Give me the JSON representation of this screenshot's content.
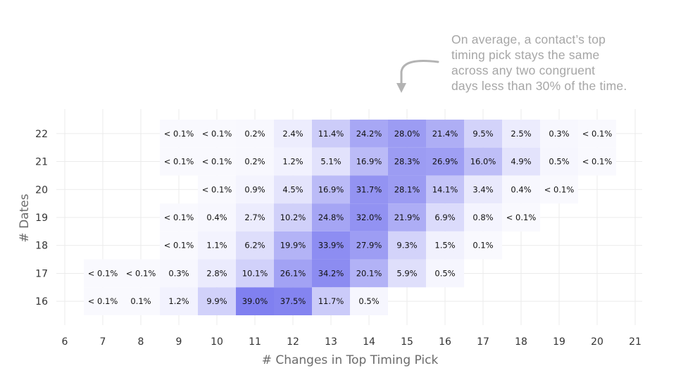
{
  "annotation": {
    "lines": [
      "On average, a contact’s top",
      "timing pick stays the same",
      "across any two congruent",
      "days less than 30% of the time."
    ]
  },
  "chart_data": {
    "type": "heatmap",
    "xlabel": "# Changes in Top Timing Pick",
    "ylabel": "# Dates",
    "x_ticks": [
      6,
      7,
      8,
      9,
      10,
      11,
      12,
      13,
      14,
      15,
      16,
      17,
      18,
      19,
      20,
      21
    ],
    "y_ticks": [
      16,
      17,
      18,
      19,
      20,
      21,
      22
    ],
    "xlim": [
      6,
      21
    ],
    "ylim": [
      15.4,
      22.6
    ],
    "grid": true,
    "color_low": "#ffffff",
    "color_high": "#8080f0",
    "rows": [
      {
        "y": 22,
        "cells": [
          {
            "x": 9,
            "v": 0.05,
            "label": "< 0.1%"
          },
          {
            "x": 10,
            "v": 0.05,
            "label": "< 0.1%"
          },
          {
            "x": 11,
            "v": 0.2,
            "label": "0.2%"
          },
          {
            "x": 12,
            "v": 2.4,
            "label": "2.4%"
          },
          {
            "x": 13,
            "v": 11.4,
            "label": "11.4%"
          },
          {
            "x": 14,
            "v": 24.2,
            "label": "24.2%"
          },
          {
            "x": 15,
            "v": 28.0,
            "label": "28.0%"
          },
          {
            "x": 16,
            "v": 21.4,
            "label": "21.4%"
          },
          {
            "x": 17,
            "v": 9.5,
            "label": "9.5%"
          },
          {
            "x": 18,
            "v": 2.5,
            "label": "2.5%"
          },
          {
            "x": 19,
            "v": 0.3,
            "label": "0.3%"
          },
          {
            "x": 20,
            "v": 0.05,
            "label": "< 0.1%"
          }
        ]
      },
      {
        "y": 21,
        "cells": [
          {
            "x": 9,
            "v": 0.05,
            "label": "< 0.1%"
          },
          {
            "x": 10,
            "v": 0.05,
            "label": "< 0.1%"
          },
          {
            "x": 11,
            "v": 0.2,
            "label": "0.2%"
          },
          {
            "x": 12,
            "v": 1.2,
            "label": "1.2%"
          },
          {
            "x": 13,
            "v": 5.1,
            "label": "5.1%"
          },
          {
            "x": 14,
            "v": 16.9,
            "label": "16.9%"
          },
          {
            "x": 15,
            "v": 28.3,
            "label": "28.3%"
          },
          {
            "x": 16,
            "v": 26.9,
            "label": "26.9%"
          },
          {
            "x": 17,
            "v": 16.0,
            "label": "16.0%"
          },
          {
            "x": 18,
            "v": 4.9,
            "label": "4.9%"
          },
          {
            "x": 19,
            "v": 0.5,
            "label": "0.5%"
          },
          {
            "x": 20,
            "v": 0.05,
            "label": "< 0.1%"
          }
        ]
      },
      {
        "y": 20,
        "cells": [
          {
            "x": 10,
            "v": 0.05,
            "label": "< 0.1%"
          },
          {
            "x": 11,
            "v": 0.9,
            "label": "0.9%"
          },
          {
            "x": 12,
            "v": 4.5,
            "label": "4.5%"
          },
          {
            "x": 13,
            "v": 16.9,
            "label": "16.9%"
          },
          {
            "x": 14,
            "v": 31.7,
            "label": "31.7%"
          },
          {
            "x": 15,
            "v": 28.1,
            "label": "28.1%"
          },
          {
            "x": 16,
            "v": 14.1,
            "label": "14.1%"
          },
          {
            "x": 17,
            "v": 3.4,
            "label": "3.4%"
          },
          {
            "x": 18,
            "v": 0.4,
            "label": "0.4%"
          },
          {
            "x": 19,
            "v": 0.05,
            "label": "< 0.1%"
          }
        ]
      },
      {
        "y": 19,
        "cells": [
          {
            "x": 9,
            "v": 0.05,
            "label": "< 0.1%"
          },
          {
            "x": 10,
            "v": 0.4,
            "label": "0.4%"
          },
          {
            "x": 11,
            "v": 2.7,
            "label": "2.7%"
          },
          {
            "x": 12,
            "v": 10.2,
            "label": "10.2%"
          },
          {
            "x": 13,
            "v": 24.8,
            "label": "24.8%"
          },
          {
            "x": 14,
            "v": 32.0,
            "label": "32.0%"
          },
          {
            "x": 15,
            "v": 21.9,
            "label": "21.9%"
          },
          {
            "x": 16,
            "v": 6.9,
            "label": "6.9%"
          },
          {
            "x": 17,
            "v": 0.8,
            "label": "0.8%"
          },
          {
            "x": 18,
            "v": 0.05,
            "label": "< 0.1%"
          }
        ]
      },
      {
        "y": 18,
        "cells": [
          {
            "x": 9,
            "v": 0.05,
            "label": "< 0.1%"
          },
          {
            "x": 10,
            "v": 1.1,
            "label": "1.1%"
          },
          {
            "x": 11,
            "v": 6.2,
            "label": "6.2%"
          },
          {
            "x": 12,
            "v": 19.9,
            "label": "19.9%"
          },
          {
            "x": 13,
            "v": 33.9,
            "label": "33.9%"
          },
          {
            "x": 14,
            "v": 27.9,
            "label": "27.9%"
          },
          {
            "x": 15,
            "v": 9.3,
            "label": "9.3%"
          },
          {
            "x": 16,
            "v": 1.5,
            "label": "1.5%"
          },
          {
            "x": 17,
            "v": 0.1,
            "label": "0.1%"
          }
        ]
      },
      {
        "y": 17,
        "cells": [
          {
            "x": 7,
            "v": 0.05,
            "label": "< 0.1%"
          },
          {
            "x": 8,
            "v": 0.05,
            "label": "< 0.1%"
          },
          {
            "x": 9,
            "v": 0.3,
            "label": "0.3%"
          },
          {
            "x": 10,
            "v": 2.8,
            "label": "2.8%"
          },
          {
            "x": 11,
            "v": 10.1,
            "label": "10.1%"
          },
          {
            "x": 12,
            "v": 26.1,
            "label": "26.1%"
          },
          {
            "x": 13,
            "v": 34.2,
            "label": "34.2%"
          },
          {
            "x": 14,
            "v": 20.1,
            "label": "20.1%"
          },
          {
            "x": 15,
            "v": 5.9,
            "label": "5.9%"
          },
          {
            "x": 16,
            "v": 0.5,
            "label": "0.5%"
          }
        ]
      },
      {
        "y": 16,
        "cells": [
          {
            "x": 7,
            "v": 0.05,
            "label": "< 0.1%"
          },
          {
            "x": 8,
            "v": 0.1,
            "label": "0.1%"
          },
          {
            "x": 9,
            "v": 1.2,
            "label": "1.2%"
          },
          {
            "x": 10,
            "v": 9.9,
            "label": "9.9%"
          },
          {
            "x": 11,
            "v": 39.0,
            "label": "39.0%"
          },
          {
            "x": 12,
            "v": 37.5,
            "label": "37.5%"
          },
          {
            "x": 13,
            "v": 11.7,
            "label": "11.7%"
          },
          {
            "x": 14,
            "v": 0.5,
            "label": "0.5%"
          }
        ]
      }
    ]
  }
}
